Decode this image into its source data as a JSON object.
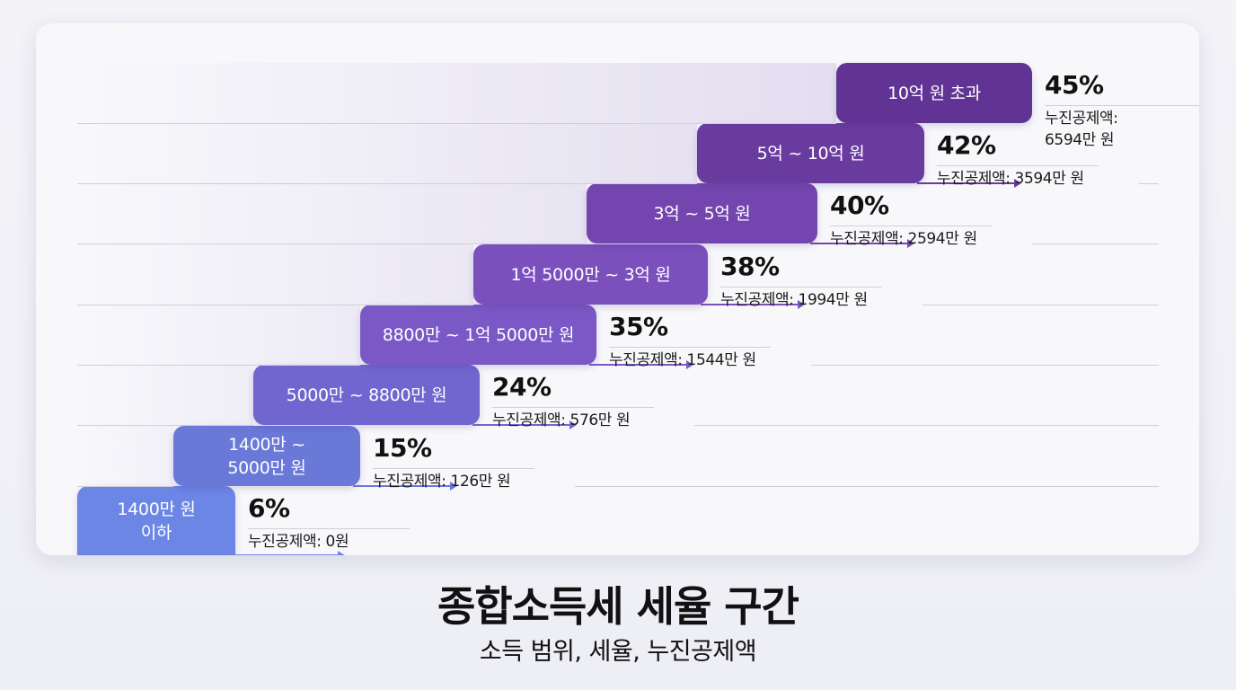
{
  "title": "종합소득세 세율 구간",
  "subtitle": "소득 범위, 세율, 누진공제액",
  "colors": {
    "tier1": "#6c86e6",
    "tier2": "#6a78d8",
    "tier3": "#7066cf",
    "tier4": "#7a58c6",
    "tier5": "#7b50bd",
    "tier6": "#7445ae",
    "tier7": "#6a3b9f",
    "tier8": "#603394"
  },
  "tiers": [
    {
      "range": "1400만 원\n이하",
      "rate": "6%",
      "deduction": "누진공제액: 0원"
    },
    {
      "range": "1400만 ~\n5000만 원",
      "rate": "15%",
      "deduction": "누진공제액: 126만 원"
    },
    {
      "range": "5000만 ~ 8800만 원",
      "rate": "24%",
      "deduction": "누진공제액: 576만 원"
    },
    {
      "range": "8800만 ~ 1억 5000만 원",
      "rate": "35%",
      "deduction": "누진공제액: 1544만 원"
    },
    {
      "range": "1억 5000만 ~ 3억 원",
      "rate": "38%",
      "deduction": "누진공제액: 1994만 원"
    },
    {
      "range": "3억 ~ 5억 원",
      "rate": "40%",
      "deduction": "누진공제액: 2594만 원"
    },
    {
      "range": "5억 ~ 10억 원",
      "rate": "42%",
      "deduction": "누진공제액: 3594만 원"
    },
    {
      "range": "10억 원 초과",
      "rate": "45%",
      "deduction": "누진공제액:\n6594만 원"
    }
  ]
}
